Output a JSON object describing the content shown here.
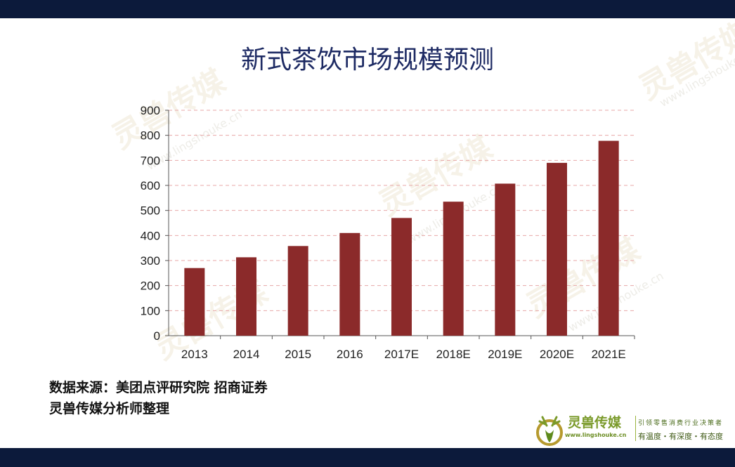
{
  "title": "新式茶饮市场规模预测",
  "source": {
    "line1": "数据来源：美团点评研究院 招商证券",
    "line2": "灵兽传媒分析师整理"
  },
  "brand": {
    "name": "灵兽传媒",
    "url": "www.lingshouke.cn",
    "slogan_line1": "引领零售消费行业决策者",
    "slogan_line2": "有温度・有深度・有态度",
    "watermark_text": "灵兽传媒",
    "watermark_url": "www.lingshouke.cn"
  },
  "colors": {
    "bar": "#8b2a2a",
    "grid": "#e8a7a7",
    "frame": "#0c1a3b",
    "title": "#1d2a63"
  },
  "chart_data": {
    "type": "bar",
    "categories": [
      "2013",
      "2014",
      "2015",
      "2016",
      "2017E",
      "2018E",
      "2019E",
      "2020E",
      "2021E"
    ],
    "values": [
      270,
      313,
      358,
      410,
      470,
      535,
      607,
      690,
      778
    ],
    "ylim": [
      0,
      900
    ],
    "yticks": [
      0,
      100,
      200,
      300,
      400,
      500,
      600,
      700,
      800,
      900
    ],
    "grid": true,
    "grid_style": "dashed",
    "legend": "none"
  }
}
